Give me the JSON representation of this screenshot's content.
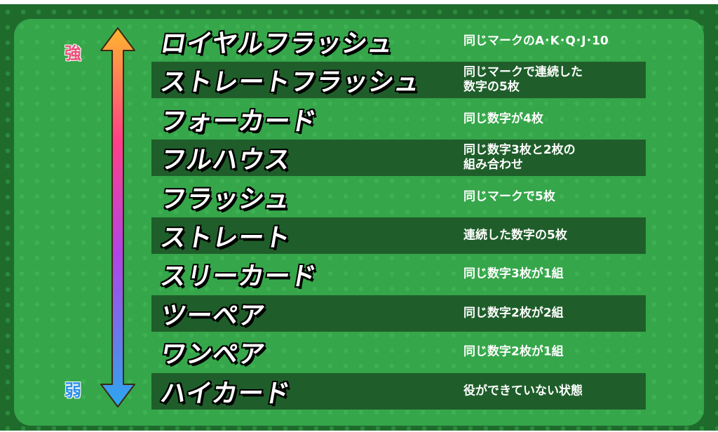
{
  "scale": {
    "strong_label": "強",
    "weak_label": "弱"
  },
  "colors": {
    "arrow_top": "#ffb52e",
    "arrow_mid": "#ff3f8a",
    "arrow_purple": "#b144e8",
    "arrow_bottom": "#2aa7f0",
    "background": "#35a64a",
    "stripe": "#1f5e2a"
  },
  "hands": [
    {
      "name": "ロイヤルフラッシュ",
      "desc": "同じマークのA･K･Q･J･10"
    },
    {
      "name": "ストレートフラッシュ",
      "desc": "同じマークで連続した\n数字の5枚"
    },
    {
      "name": "フォーカード",
      "desc": "同じ数字が4枚"
    },
    {
      "name": "フルハウス",
      "desc": "同じ数字3枚と2枚の\n組み合わせ"
    },
    {
      "name": "フラッシュ",
      "desc": "同じマークで5枚"
    },
    {
      "name": "ストレート",
      "desc": "連続した数字の5枚"
    },
    {
      "name": "スリーカード",
      "desc": "同じ数字3枚が1組"
    },
    {
      "name": "ツーペア",
      "desc": "同じ数字2枚が2組"
    },
    {
      "name": "ワンペア",
      "desc": "同じ数字2枚が1組"
    },
    {
      "name": "ハイカード",
      "desc": "役ができていない状態"
    }
  ]
}
